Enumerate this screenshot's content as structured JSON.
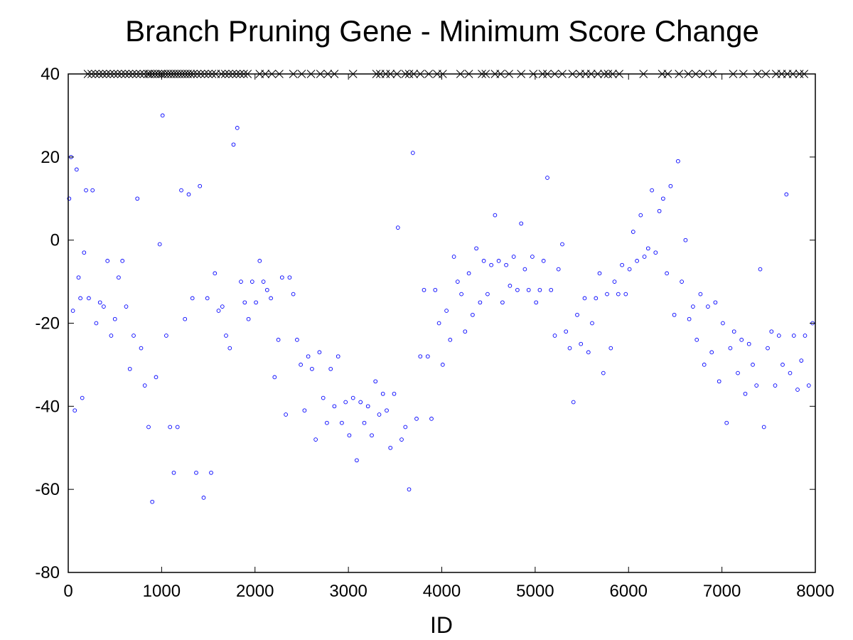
{
  "chart_data": {
    "type": "scatter",
    "title": "Branch Pruning Gene - Minimum Score Change",
    "xlabel": "ID",
    "ylabel": "",
    "xlim": [
      0,
      8000
    ],
    "ylim": [
      -80,
      40
    ],
    "x_ticks": [
      0,
      1000,
      2000,
      3000,
      4000,
      5000,
      6000,
      7000,
      8000
    ],
    "y_ticks": [
      -80,
      -60,
      -40,
      -20,
      0,
      20,
      40
    ],
    "grid": false,
    "legend": "none",
    "colors": {
      "points": "#0000ff",
      "clipped_markers": "#000000",
      "axes": "#000000"
    },
    "overflow_markers": {
      "y": 40,
      "marker": "x",
      "x": [
        210,
        250,
        290,
        330,
        370,
        410,
        450,
        490,
        530,
        570,
        610,
        650,
        690,
        730,
        770,
        810,
        850,
        870,
        900,
        930,
        960,
        990,
        1010,
        1040,
        1070,
        1100,
        1130,
        1160,
        1190,
        1220,
        1250,
        1280,
        1310,
        1340,
        1380,
        1420,
        1460,
        1500,
        1540,
        1580,
        1640,
        1680,
        1720,
        1760,
        1800,
        1840,
        1880,
        1920,
        2050,
        2110,
        2180,
        2260,
        2410,
        2500,
        2600,
        2700,
        2780,
        2850,
        3050,
        3300,
        3340,
        3400,
        3450,
        3520,
        3610,
        3650,
        3700,
        3770,
        3860,
        3950,
        4010,
        4200,
        4290,
        4430,
        4470,
        4570,
        4630,
        4720,
        4850,
        4980,
        5080,
        5130,
        5210,
        5290,
        5400,
        5480,
        5540,
        5600,
        5670,
        5740,
        5780,
        5830,
        5900,
        6160,
        6360,
        6420,
        6540,
        6640,
        6720,
        6800,
        6900,
        7120,
        7230,
        7380,
        7470,
        7580,
        7640,
        7700,
        7760,
        7830,
        7880
      ]
    },
    "points_summary": "Dense blue open-circle scatter (~8000 points); values shown below are representative clusters read from the figure.",
    "points": [
      {
        "x": 10,
        "y": 10
      },
      {
        "x": 30,
        "y": 20
      },
      {
        "x": 50,
        "y": -17
      },
      {
        "x": 70,
        "y": -41
      },
      {
        "x": 90,
        "y": 17
      },
      {
        "x": 110,
        "y": -9
      },
      {
        "x": 130,
        "y": -14
      },
      {
        "x": 150,
        "y": -38
      },
      {
        "x": 170,
        "y": -3
      },
      {
        "x": 190,
        "y": 12
      },
      {
        "x": 220,
        "y": -14
      },
      {
        "x": 260,
        "y": 12
      },
      {
        "x": 300,
        "y": -20
      },
      {
        "x": 340,
        "y": -15
      },
      {
        "x": 380,
        "y": -16
      },
      {
        "x": 420,
        "y": -5
      },
      {
        "x": 460,
        "y": -23
      },
      {
        "x": 500,
        "y": -19
      },
      {
        "x": 540,
        "y": -9
      },
      {
        "x": 580,
        "y": -5
      },
      {
        "x": 620,
        "y": -16
      },
      {
        "x": 660,
        "y": -31
      },
      {
        "x": 700,
        "y": -23
      },
      {
        "x": 740,
        "y": 10
      },
      {
        "x": 780,
        "y": -26
      },
      {
        "x": 820,
        "y": -35
      },
      {
        "x": 860,
        "y": -45
      },
      {
        "x": 900,
        "y": -63
      },
      {
        "x": 940,
        "y": -33
      },
      {
        "x": 980,
        "y": -1
      },
      {
        "x": 1010,
        "y": 30
      },
      {
        "x": 1050,
        "y": -23
      },
      {
        "x": 1090,
        "y": -45
      },
      {
        "x": 1130,
        "y": -56
      },
      {
        "x": 1170,
        "y": -45
      },
      {
        "x": 1210,
        "y": 12
      },
      {
        "x": 1250,
        "y": -19
      },
      {
        "x": 1290,
        "y": 11
      },
      {
        "x": 1330,
        "y": -14
      },
      {
        "x": 1370,
        "y": -56
      },
      {
        "x": 1410,
        "y": 13
      },
      {
        "x": 1450,
        "y": -62
      },
      {
        "x": 1490,
        "y": -14
      },
      {
        "x": 1530,
        "y": -56
      },
      {
        "x": 1570,
        "y": -8
      },
      {
        "x": 1610,
        "y": -17
      },
      {
        "x": 1650,
        "y": -16
      },
      {
        "x": 1690,
        "y": -23
      },
      {
        "x": 1730,
        "y": -26
      },
      {
        "x": 1770,
        "y": 23
      },
      {
        "x": 1810,
        "y": 27
      },
      {
        "x": 1850,
        "y": -10
      },
      {
        "x": 1890,
        "y": -15
      },
      {
        "x": 1930,
        "y": -19
      },
      {
        "x": 1970,
        "y": -10
      },
      {
        "x": 2010,
        "y": -15
      },
      {
        "x": 2050,
        "y": -5
      },
      {
        "x": 2090,
        "y": -10
      },
      {
        "x": 2130,
        "y": -12
      },
      {
        "x": 2170,
        "y": -14
      },
      {
        "x": 2210,
        "y": -33
      },
      {
        "x": 2250,
        "y": -24
      },
      {
        "x": 2290,
        "y": -9
      },
      {
        "x": 2330,
        "y": -42
      },
      {
        "x": 2370,
        "y": -9
      },
      {
        "x": 2410,
        "y": -13
      },
      {
        "x": 2450,
        "y": -24
      },
      {
        "x": 2490,
        "y": -30
      },
      {
        "x": 2530,
        "y": -41
      },
      {
        "x": 2570,
        "y": -28
      },
      {
        "x": 2610,
        "y": -31
      },
      {
        "x": 2650,
        "y": -48
      },
      {
        "x": 2690,
        "y": -27
      },
      {
        "x": 2730,
        "y": -38
      },
      {
        "x": 2770,
        "y": -44
      },
      {
        "x": 2810,
        "y": -31
      },
      {
        "x": 2850,
        "y": -40
      },
      {
        "x": 2890,
        "y": -28
      },
      {
        "x": 2930,
        "y": -44
      },
      {
        "x": 2970,
        "y": -39
      },
      {
        "x": 3010,
        "y": -47
      },
      {
        "x": 3050,
        "y": -38
      },
      {
        "x": 3090,
        "y": -53
      },
      {
        "x": 3130,
        "y": -39
      },
      {
        "x": 3170,
        "y": -44
      },
      {
        "x": 3210,
        "y": -40
      },
      {
        "x": 3250,
        "y": -47
      },
      {
        "x": 3290,
        "y": -34
      },
      {
        "x": 3330,
        "y": -42
      },
      {
        "x": 3370,
        "y": -37
      },
      {
        "x": 3410,
        "y": -41
      },
      {
        "x": 3450,
        "y": -50
      },
      {
        "x": 3490,
        "y": -37
      },
      {
        "x": 3530,
        "y": 3
      },
      {
        "x": 3570,
        "y": -48
      },
      {
        "x": 3610,
        "y": -45
      },
      {
        "x": 3650,
        "y": -60
      },
      {
        "x": 3690,
        "y": 21
      },
      {
        "x": 3730,
        "y": -43
      },
      {
        "x": 3770,
        "y": -28
      },
      {
        "x": 3810,
        "y": -12
      },
      {
        "x": 3850,
        "y": -28
      },
      {
        "x": 3890,
        "y": -43
      },
      {
        "x": 3930,
        "y": -12
      },
      {
        "x": 3970,
        "y": -20
      },
      {
        "x": 4010,
        "y": -30
      },
      {
        "x": 4050,
        "y": -17
      },
      {
        "x": 4090,
        "y": -24
      },
      {
        "x": 4130,
        "y": -4
      },
      {
        "x": 4170,
        "y": -10
      },
      {
        "x": 4210,
        "y": -13
      },
      {
        "x": 4250,
        "y": -22
      },
      {
        "x": 4290,
        "y": -8
      },
      {
        "x": 4330,
        "y": -18
      },
      {
        "x": 4370,
        "y": -2
      },
      {
        "x": 4410,
        "y": -15
      },
      {
        "x": 4450,
        "y": -5
      },
      {
        "x": 4490,
        "y": -13
      },
      {
        "x": 4530,
        "y": -6
      },
      {
        "x": 4570,
        "y": 6
      },
      {
        "x": 4610,
        "y": -5
      },
      {
        "x": 4650,
        "y": -15
      },
      {
        "x": 4690,
        "y": -6
      },
      {
        "x": 4730,
        "y": -11
      },
      {
        "x": 4770,
        "y": -4
      },
      {
        "x": 4810,
        "y": -12
      },
      {
        "x": 4850,
        "y": 4
      },
      {
        "x": 4890,
        "y": -7
      },
      {
        "x": 4930,
        "y": -12
      },
      {
        "x": 4970,
        "y": -4
      },
      {
        "x": 5010,
        "y": -15
      },
      {
        "x": 5050,
        "y": -12
      },
      {
        "x": 5090,
        "y": -5
      },
      {
        "x": 5130,
        "y": 15
      },
      {
        "x": 5170,
        "y": -12
      },
      {
        "x": 5210,
        "y": -23
      },
      {
        "x": 5250,
        "y": -7
      },
      {
        "x": 5290,
        "y": -1
      },
      {
        "x": 5330,
        "y": -22
      },
      {
        "x": 5370,
        "y": -26
      },
      {
        "x": 5410,
        "y": -39
      },
      {
        "x": 5450,
        "y": -18
      },
      {
        "x": 5490,
        "y": -25
      },
      {
        "x": 5530,
        "y": -14
      },
      {
        "x": 5570,
        "y": -27
      },
      {
        "x": 5610,
        "y": -20
      },
      {
        "x": 5650,
        "y": -14
      },
      {
        "x": 5690,
        "y": -8
      },
      {
        "x": 5730,
        "y": -32
      },
      {
        "x": 5770,
        "y": -13
      },
      {
        "x": 5810,
        "y": -26
      },
      {
        "x": 5850,
        "y": -10
      },
      {
        "x": 5890,
        "y": -13
      },
      {
        "x": 5930,
        "y": -6
      },
      {
        "x": 5970,
        "y": -13
      },
      {
        "x": 6010,
        "y": -7
      },
      {
        "x": 6050,
        "y": 2
      },
      {
        "x": 6090,
        "y": -5
      },
      {
        "x": 6130,
        "y": 6
      },
      {
        "x": 6170,
        "y": -4
      },
      {
        "x": 6210,
        "y": -2
      },
      {
        "x": 6250,
        "y": 12
      },
      {
        "x": 6290,
        "y": -3
      },
      {
        "x": 6330,
        "y": 7
      },
      {
        "x": 6370,
        "y": 10
      },
      {
        "x": 6410,
        "y": -8
      },
      {
        "x": 6450,
        "y": 13
      },
      {
        "x": 6490,
        "y": -18
      },
      {
        "x": 6530,
        "y": 19
      },
      {
        "x": 6570,
        "y": -10
      },
      {
        "x": 6610,
        "y": 0
      },
      {
        "x": 6650,
        "y": -19
      },
      {
        "x": 6690,
        "y": -16
      },
      {
        "x": 6730,
        "y": -24
      },
      {
        "x": 6770,
        "y": -13
      },
      {
        "x": 6810,
        "y": -30
      },
      {
        "x": 6850,
        "y": -16
      },
      {
        "x": 6890,
        "y": -27
      },
      {
        "x": 6930,
        "y": -15
      },
      {
        "x": 6970,
        "y": -34
      },
      {
        "x": 7010,
        "y": -20
      },
      {
        "x": 7050,
        "y": -44
      },
      {
        "x": 7090,
        "y": -26
      },
      {
        "x": 7130,
        "y": -22
      },
      {
        "x": 7170,
        "y": -32
      },
      {
        "x": 7210,
        "y": -24
      },
      {
        "x": 7250,
        "y": -37
      },
      {
        "x": 7290,
        "y": -25
      },
      {
        "x": 7330,
        "y": -30
      },
      {
        "x": 7370,
        "y": -35
      },
      {
        "x": 7410,
        "y": -7
      },
      {
        "x": 7450,
        "y": -45
      },
      {
        "x": 7490,
        "y": -26
      },
      {
        "x": 7530,
        "y": -22
      },
      {
        "x": 7570,
        "y": -35
      },
      {
        "x": 7610,
        "y": -23
      },
      {
        "x": 7650,
        "y": -30
      },
      {
        "x": 7690,
        "y": 11
      },
      {
        "x": 7730,
        "y": -32
      },
      {
        "x": 7770,
        "y": -23
      },
      {
        "x": 7810,
        "y": -36
      },
      {
        "x": 7850,
        "y": -29
      },
      {
        "x": 7890,
        "y": -23
      },
      {
        "x": 7930,
        "y": -35
      },
      {
        "x": 7970,
        "y": -20
      }
    ]
  }
}
